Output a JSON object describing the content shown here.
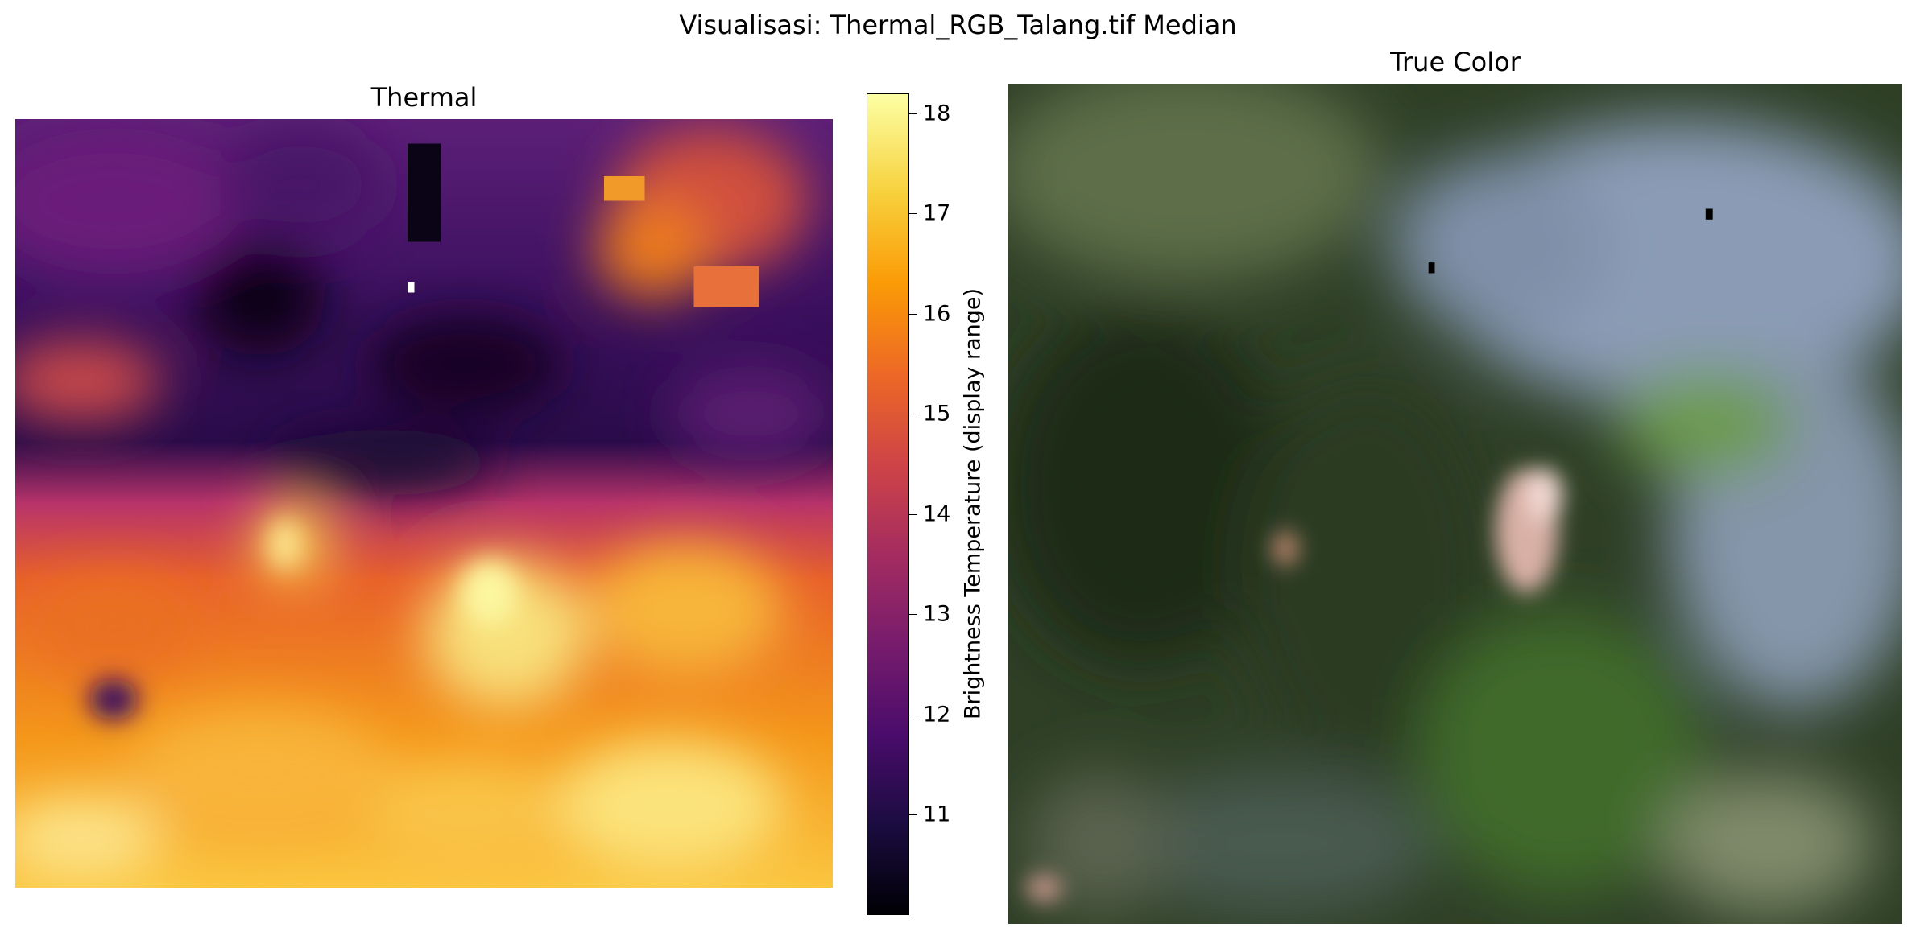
{
  "figure": {
    "suptitle": "Visualisasi: Thermal_RGB_Talang.tif Median"
  },
  "thermal_panel": {
    "title": "Thermal",
    "colormap": "inferno",
    "colorbar": {
      "label": "Brightness Temperature (display range)",
      "vmin": 10.0,
      "vmax": 18.2,
      "ticks": [
        "11",
        "12",
        "13",
        "14",
        "15",
        "16",
        "17",
        "18"
      ]
    }
  },
  "rgb_panel": {
    "title": "True Color"
  },
  "colors": {
    "inferno_low": "#000004",
    "inferno_mid": "#bb3754",
    "inferno_high": "#fcffa4",
    "vegetation": "#3a5a2a",
    "cloud_haze": "#9aa8c4",
    "bare_soil": "#d9a59a"
  }
}
